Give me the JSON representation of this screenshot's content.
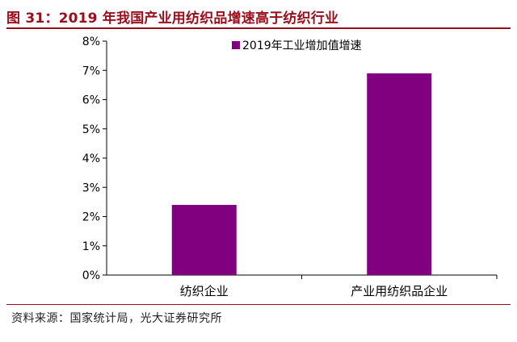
{
  "figure": {
    "title": "图 31：2019 年我国产业用纺织品增速高于纺织行业",
    "source": "资料来源：国家统计局，光大证券研究所"
  },
  "chart_data": {
    "type": "bar",
    "categories": [
      "纺织企业",
      "产业用纺织品企业"
    ],
    "series": [
      {
        "name": "2019年工业增加值增速",
        "values": [
          2.4,
          6.9
        ],
        "color": "#800080"
      }
    ],
    "ylim": [
      0,
      8
    ],
    "yticks": [
      "0%",
      "1%",
      "2%",
      "3%",
      "4%",
      "5%",
      "6%",
      "7%",
      "8%"
    ],
    "grid": false,
    "legend": "top"
  }
}
